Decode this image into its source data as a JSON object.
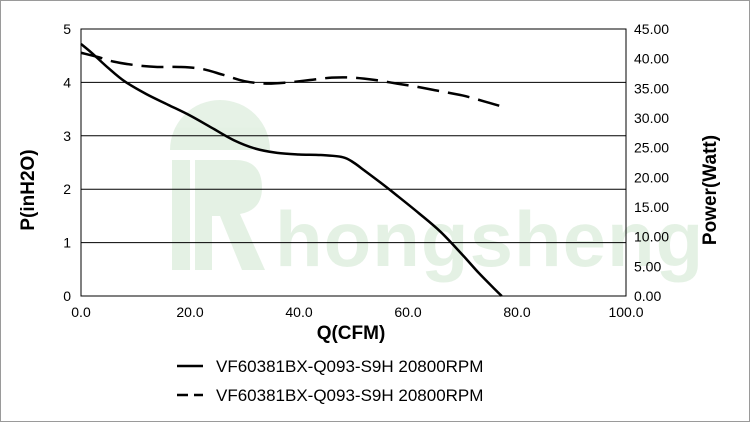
{
  "chart_data": {
    "type": "line",
    "title": "",
    "xlabel": "Q(CFM)",
    "ylabel": "P(inH2O)",
    "y2label": "Power(Watt)",
    "xlim": [
      0,
      100
    ],
    "ylim": [
      0,
      5
    ],
    "y2lim": [
      0,
      45
    ],
    "x_ticks": [
      "0.0",
      "20.0",
      "40.0",
      "60.0",
      "80.0",
      "100.0"
    ],
    "y_ticks": [
      "0",
      "1",
      "2",
      "3",
      "4",
      "5"
    ],
    "y2_ticks": [
      "0.00",
      "5.00",
      "10.00",
      "15.00",
      "20.00",
      "25.00",
      "30.00",
      "35.00",
      "40.00",
      "45.00"
    ],
    "grid": "horizontal",
    "legend_position": "bottom",
    "watermark": "hongsheng",
    "series": [
      {
        "name": "VF60381BX-Q093-S9H 20800RPM",
        "axis": "left",
        "style": "solid",
        "x": [
          0,
          2,
          5,
          8,
          12,
          16,
          20,
          24,
          28,
          32,
          36,
          40,
          44,
          48,
          50,
          52,
          55,
          58,
          62,
          66,
          70,
          73,
          76,
          77.2
        ],
        "y": [
          4.72,
          4.55,
          4.27,
          4.02,
          3.78,
          3.58,
          3.38,
          3.15,
          2.92,
          2.76,
          2.68,
          2.65,
          2.64,
          2.6,
          2.5,
          2.35,
          2.12,
          1.88,
          1.55,
          1.2,
          0.77,
          0.43,
          0.12,
          0
        ]
      },
      {
        "name": "VF60381BX-Q093-S9H 20800RPM",
        "axis": "right",
        "style": "dashed",
        "x": [
          0,
          3,
          6,
          10,
          14,
          18,
          22,
          26,
          30,
          34,
          38,
          42,
          46,
          50,
          54,
          58,
          62,
          66,
          70,
          74,
          77
        ],
        "y": [
          41,
          40.3,
          39.5,
          38.9,
          38.6,
          38.6,
          38.3,
          37.3,
          36.2,
          35.8,
          36,
          36.4,
          36.8,
          36.8,
          36.4,
          35.8,
          35.2,
          34.5,
          33.8,
          32.8,
          32
        ]
      }
    ]
  }
}
